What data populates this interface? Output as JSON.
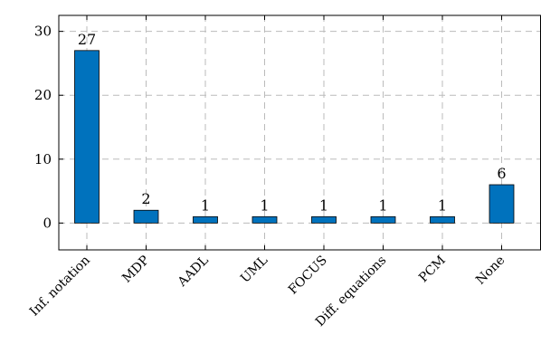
{
  "chart_data": {
    "type": "bar",
    "categories": [
      "Inf. notation",
      "MDP",
      "AADL",
      "UML",
      "FOCUS",
      "Diff. equations",
      "PCM",
      "None"
    ],
    "values": [
      27,
      2,
      1,
      1,
      1,
      1,
      1,
      6
    ],
    "data_labels": [
      "27",
      "2",
      "1",
      "1",
      "1",
      "1",
      "1",
      "6"
    ],
    "yticks": [
      0,
      10,
      20,
      30
    ],
    "ytick_labels": [
      "0",
      "10",
      "20",
      "30"
    ],
    "ylim": [
      -4.2,
      32.5
    ],
    "grid": true,
    "bar_color": "#0072bd",
    "bar_edge_color": "#000000",
    "grid_color": "#bbbbbb"
  }
}
